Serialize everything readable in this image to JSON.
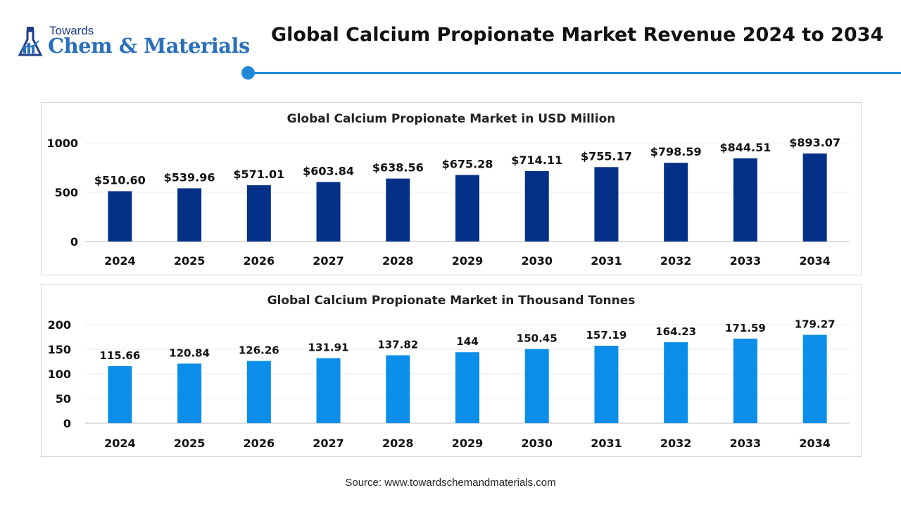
{
  "header": {
    "logo_top": "Towards",
    "logo_main": "Chem & Materials",
    "title": "Global Calcium Propionate Market Revenue 2024 to 2034"
  },
  "colors": {
    "accent": "#1f8ad8",
    "bar_usd": "#053087",
    "bar_tonnes": "#0a8ee9",
    "logo_dark": "#1e3f86",
    "logo_light": "#2a6fbd"
  },
  "footer": {
    "source": "Source: www.towardschemandmaterials.com"
  },
  "chart_data": [
    {
      "type": "bar",
      "title": "Global Calcium Propionate Market in USD Million",
      "categories": [
        "2024",
        "2025",
        "2026",
        "2027",
        "2028",
        "2029",
        "2030",
        "2031",
        "2032",
        "2033",
        "2034"
      ],
      "values": [
        510.6,
        539.96,
        571.01,
        603.84,
        638.56,
        675.28,
        714.11,
        755.17,
        798.59,
        844.51,
        893.07
      ],
      "data_labels": [
        "$510.60",
        "$539.96",
        "$571.01",
        "$603.84",
        "$638.56",
        "$675.28",
        "$714.11",
        "$755.17",
        "$798.59",
        "$844.51",
        "$893.07"
      ],
      "ylim": [
        0,
        1000
      ],
      "yticks": [
        0,
        500,
        1000
      ],
      "grid": true,
      "color": "#053087"
    },
    {
      "type": "bar",
      "title": "Global Calcium Propionate Market in Thousand Tonnes",
      "categories": [
        "2024",
        "2025",
        "2026",
        "2027",
        "2028",
        "2029",
        "2030",
        "2031",
        "2032",
        "2033",
        "2034"
      ],
      "values": [
        115.66,
        120.84,
        126.26,
        131.91,
        137.82,
        144,
        150.45,
        157.19,
        164.23,
        171.59,
        179.27
      ],
      "data_labels": [
        "115.66",
        "120.84",
        "126.26",
        "131.91",
        "137.82",
        "144",
        "150.45",
        "157.19",
        "164.23",
        "171.59",
        "179.27"
      ],
      "ylim": [
        0,
        200
      ],
      "yticks": [
        0,
        50,
        100,
        150,
        200
      ],
      "grid": true,
      "color": "#0a8ee9"
    }
  ]
}
